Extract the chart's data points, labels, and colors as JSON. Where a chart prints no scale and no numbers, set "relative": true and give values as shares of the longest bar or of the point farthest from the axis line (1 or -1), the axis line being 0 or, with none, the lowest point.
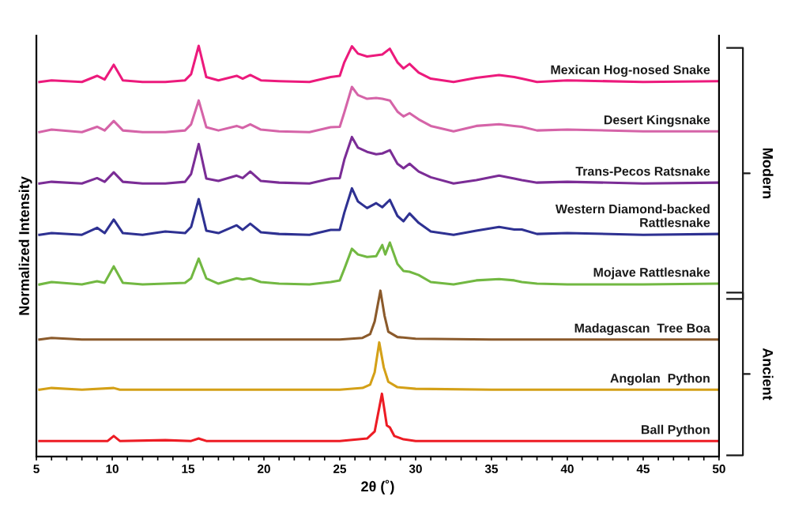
{
  "chart_data": {
    "type": "line",
    "relative": true,
    "xlabel": "2θ (˚)",
    "ylabel": "Normalized Intensity",
    "tick_labels": "x",
    "xlim": [
      5,
      50
    ],
    "xticks": [
      5,
      {
        "value": 6,
        "label": null
      },
      {
        "value": 7,
        "label": null
      },
      {
        "value": 8,
        "label": null
      },
      {
        "value": 9,
        "label": null
      },
      10,
      {
        "value": 11,
        "label": null
      },
      {
        "value": 12,
        "label": null
      },
      {
        "value": 13,
        "label": null
      },
      {
        "value": 14,
        "label": null
      },
      15,
      {
        "value": 16,
        "label": null
      },
      {
        "value": 17,
        "label": null
      },
      {
        "value": 18,
        "label": null
      },
      {
        "value": 19,
        "label": null
      },
      20,
      {
        "value": 21,
        "label": null
      },
      {
        "value": 22,
        "label": null
      },
      {
        "value": 23,
        "label": null
      },
      {
        "value": 24,
        "label": null
      },
      25,
      {
        "value": 26,
        "label": null
      },
      {
        "value": 27,
        "label": null
      },
      {
        "value": 28,
        "label": null
      },
      {
        "value": 29,
        "label": null
      },
      30,
      {
        "value": 31,
        "label": null
      },
      {
        "value": 32,
        "label": null
      },
      {
        "value": 33,
        "label": null
      },
      {
        "value": 34,
        "label": null
      },
      35,
      {
        "value": 36,
        "label": null
      },
      {
        "value": 37,
        "label": null
      },
      {
        "value": 38,
        "label": null
      },
      {
        "value": 39,
        "label": null
      },
      40,
      {
        "value": 41,
        "label": null
      },
      {
        "value": 42,
        "label": null
      },
      {
        "value": 43,
        "label": null
      },
      {
        "value": 44,
        "label": null
      },
      45,
      {
        "value": 46,
        "label": null
      },
      {
        "value": 47,
        "label": null
      },
      {
        "value": 48,
        "label": null
      },
      {
        "value": 49,
        "label": null
      },
      50
    ],
    "annotations": [
      "Modern",
      "Ancient"
    ],
    "series": [
      {
        "name": "Mexican Hog-nosed Snake",
        "color": "#ec1a7c",
        "x": [
          5.2,
          6,
          8,
          9,
          9.5,
          10.1,
          10.7,
          12,
          13.5,
          14.8,
          15.2,
          15.7,
          16.2,
          17,
          18.2,
          18.6,
          19.1,
          19.8,
          21,
          23,
          24.4,
          25,
          25.3,
          25.8,
          26.2,
          26.8,
          27.4,
          27.8,
          28.3,
          28.8,
          29.2,
          29.6,
          30.2,
          31,
          32.5,
          34,
          35.5,
          36.5,
          37,
          38,
          40,
          45,
          50
        ],
        "values": [
          0.912,
          0.916,
          0.912,
          0.927,
          0.918,
          0.954,
          0.916,
          0.912,
          0.912,
          0.916,
          0.931,
          1.0,
          0.924,
          0.916,
          0.927,
          0.92,
          0.929,
          0.916,
          0.914,
          0.912,
          0.924,
          0.927,
          0.96,
          0.999,
          0.981,
          0.974,
          0.977,
          0.979,
          0.993,
          0.96,
          0.945,
          0.956,
          0.935,
          0.92,
          0.912,
          0.922,
          0.929,
          0.924,
          0.92,
          0.912,
          0.916,
          0.912,
          0.914
        ]
      },
      {
        "name": "Desert Kingsnake",
        "color": "#d564a8",
        "x": [
          5.2,
          6,
          8,
          9,
          9.5,
          10.1,
          10.7,
          12,
          13.5,
          14.8,
          15.2,
          15.7,
          16.2,
          17,
          18.2,
          18.6,
          19.1,
          19.8,
          21,
          23,
          24.4,
          25,
          25.3,
          25.8,
          26.2,
          26.8,
          27.4,
          27.8,
          28.3,
          28.8,
          29.2,
          29.6,
          30.2,
          31,
          32.5,
          34,
          35.5,
          36.5,
          37,
          38,
          40,
          45,
          50
        ],
        "values": [
          0.79,
          0.796,
          0.79,
          0.803,
          0.794,
          0.817,
          0.794,
          0.79,
          0.79,
          0.794,
          0.809,
          0.867,
          0.802,
          0.794,
          0.805,
          0.8,
          0.809,
          0.796,
          0.792,
          0.79,
          0.802,
          0.803,
          0.838,
          0.9,
          0.88,
          0.871,
          0.873,
          0.871,
          0.867,
          0.84,
          0.828,
          0.836,
          0.821,
          0.805,
          0.792,
          0.805,
          0.809,
          0.805,
          0.803,
          0.794,
          0.796,
          0.792,
          0.792
        ]
      },
      {
        "name": "Trans-Pecos Ratsnake",
        "color": "#7b2d96",
        "x": [
          5.2,
          6,
          8,
          9,
          9.5,
          10.1,
          10.7,
          12,
          13.5,
          14.8,
          15.2,
          15.7,
          16.2,
          17,
          18.2,
          18.6,
          19.1,
          19.8,
          21,
          23,
          24.4,
          25,
          25.3,
          25.8,
          26.2,
          26.8,
          27.4,
          27.8,
          28.3,
          28.8,
          29.2,
          29.6,
          30.2,
          31,
          32.5,
          34,
          35.5,
          36.5,
          37,
          38,
          40,
          45,
          50
        ],
        "values": [
          0.665,
          0.669,
          0.665,
          0.678,
          0.669,
          0.692,
          0.669,
          0.665,
          0.665,
          0.669,
          0.688,
          0.761,
          0.677,
          0.671,
          0.684,
          0.678,
          0.694,
          0.671,
          0.667,
          0.665,
          0.677,
          0.678,
          0.723,
          0.778,
          0.752,
          0.742,
          0.736,
          0.738,
          0.746,
          0.713,
          0.702,
          0.713,
          0.694,
          0.68,
          0.665,
          0.673,
          0.684,
          0.677,
          0.673,
          0.667,
          0.669,
          0.665,
          0.667
        ]
      },
      {
        "name": "Western Diamond-backed\nRattlesnake",
        "color": "#2e3192",
        "x": [
          5.2,
          6,
          8,
          9,
          9.5,
          10.1,
          10.7,
          12,
          13.5,
          14.8,
          15.2,
          15.7,
          16.2,
          17,
          18.2,
          18.6,
          19.1,
          19.8,
          21,
          23,
          24.4,
          25,
          25.3,
          25.8,
          26.2,
          26.8,
          27.4,
          27.8,
          28.3,
          28.8,
          29.2,
          29.6,
          30.2,
          31,
          32.5,
          34,
          35.5,
          36.5,
          37,
          38,
          40,
          45,
          50
        ],
        "values": [
          0.54,
          0.544,
          0.54,
          0.557,
          0.544,
          0.577,
          0.544,
          0.54,
          0.548,
          0.544,
          0.559,
          0.627,
          0.55,
          0.544,
          0.563,
          0.552,
          0.567,
          0.546,
          0.542,
          0.54,
          0.552,
          0.552,
          0.594,
          0.653,
          0.621,
          0.605,
          0.617,
          0.607,
          0.625,
          0.586,
          0.573,
          0.592,
          0.569,
          0.548,
          0.54,
          0.55,
          0.559,
          0.553,
          0.553,
          0.542,
          0.544,
          0.54,
          0.542
        ]
      },
      {
        "name": "Mojave Rattlesnake",
        "color": "#72b842",
        "x": [
          5.2,
          6,
          8,
          9,
          9.5,
          10.1,
          10.7,
          12,
          13.5,
          14.8,
          15.2,
          15.7,
          16.2,
          17,
          18.2,
          18.6,
          19.1,
          19.8,
          21,
          23,
          24.4,
          25,
          25.3,
          25.8,
          26.2,
          26.8,
          27.4,
          27.8,
          28.0,
          28.3,
          28.8,
          29.2,
          29.6,
          30.2,
          31,
          32.5,
          34,
          35.5,
          36.5,
          37,
          38,
          40,
          45,
          50
        ],
        "values": [
          0.419,
          0.425,
          0.419,
          0.427,
          0.423,
          0.463,
          0.423,
          0.419,
          0.421,
          0.423,
          0.434,
          0.482,
          0.434,
          0.421,
          0.434,
          0.431,
          0.434,
          0.425,
          0.421,
          0.419,
          0.425,
          0.429,
          0.457,
          0.506,
          0.492,
          0.486,
          0.488,
          0.515,
          0.492,
          0.521,
          0.469,
          0.452,
          0.45,
          0.442,
          0.425,
          0.419,
          0.429,
          0.432,
          0.429,
          0.425,
          0.421,
          0.419,
          0.419,
          0.421
        ]
      },
      {
        "name": "Madagascan  Tree Boa",
        "color": "#8b5a2b",
        "x": [
          5.2,
          6,
          8,
          15,
          20,
          25,
          26.5,
          27.0,
          27.3,
          27.68,
          27.95,
          28.2,
          28.8,
          30,
          35,
          50
        ],
        "values": [
          0.285,
          0.289,
          0.285,
          0.285,
          0.285,
          0.285,
          0.289,
          0.298,
          0.329,
          0.404,
          0.343,
          0.304,
          0.291,
          0.287,
          0.285,
          0.285
        ]
      },
      {
        "name": "Angolan  Python",
        "color": "#d4a017",
        "x": [
          5.2,
          6,
          8,
          10.1,
          10.5,
          20,
          25,
          26.5,
          27.0,
          27.3,
          27.6,
          27.9,
          28.2,
          28.8,
          30,
          35,
          50
        ],
        "values": [
          0.163,
          0.167,
          0.163,
          0.167,
          0.163,
          0.163,
          0.163,
          0.167,
          0.175,
          0.205,
          0.278,
          0.217,
          0.182,
          0.169,
          0.165,
          0.163,
          0.163
        ]
      },
      {
        "name": "Ball Python",
        "color": "#ed1c24",
        "x": [
          5.2,
          8,
          9.7,
          10.1,
          10.5,
          13.5,
          15.2,
          15.7,
          16.2,
          20,
          25,
          26.8,
          27.3,
          27.78,
          28.1,
          28.3,
          28.6,
          29.2,
          30,
          35,
          50
        ],
        "values": [
          0.038,
          0.038,
          0.038,
          0.05,
          0.038,
          0.04,
          0.038,
          0.044,
          0.038,
          0.038,
          0.038,
          0.044,
          0.061,
          0.153,
          0.076,
          0.071,
          0.05,
          0.042,
          0.038,
          0.038,
          0.038
        ]
      }
    ]
  }
}
